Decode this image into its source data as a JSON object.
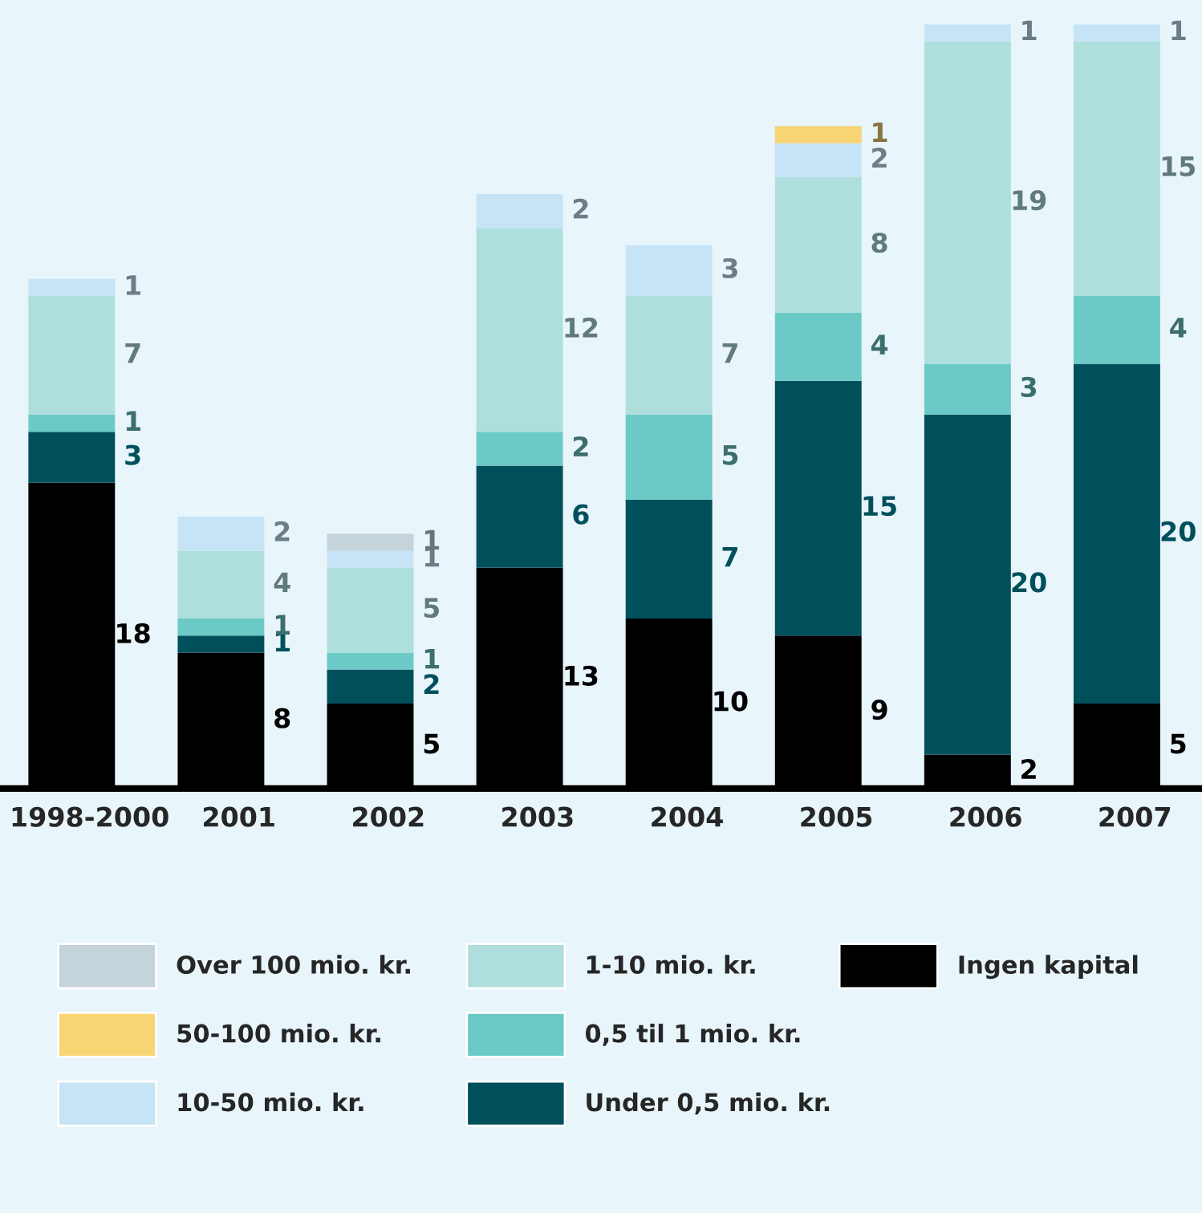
{
  "chart_data": {
    "type": "bar",
    "stacked": true,
    "legend": "bottom",
    "grid": false,
    "categories": [
      "1998-2000",
      "2001",
      "2002",
      "2003",
      "2004",
      "2005",
      "2006",
      "2007"
    ],
    "series": [
      {
        "name": "Ingen kapital",
        "color": "#000000",
        "values": [
          18,
          8,
          5,
          13,
          10,
          9,
          2,
          5
        ],
        "value_labels": [
          "18",
          "8",
          "5",
          "13",
          "10",
          "9",
          "2",
          "5"
        ]
      },
      {
        "name": "Under 0,5 mio. kr.",
        "color": "#00505c",
        "values": [
          3,
          1,
          2,
          6,
          7,
          15,
          20,
          20
        ],
        "value_labels": [
          "3",
          "1",
          "2",
          "6",
          "7",
          "15",
          "20",
          "20"
        ]
      },
      {
        "name": "0,5 til 1 mio. kr.",
        "color": "#6ccac6",
        "values": [
          1,
          1,
          1,
          2,
          5,
          4,
          3,
          4
        ],
        "value_labels": [
          "1",
          "1",
          "1",
          "2",
          "5",
          "4",
          "3",
          "4"
        ]
      },
      {
        "name": "1-10 mio. kr.",
        "color": "#aedfdc",
        "values": [
          7,
          4,
          5,
          12,
          7,
          8,
          19,
          15
        ],
        "value_labels": [
          "7",
          "4",
          "5",
          "12",
          "7",
          "8",
          "19",
          "15"
        ]
      },
      {
        "name": "10-50 mio. kr.",
        "color": "#c6e4f5",
        "values": [
          1,
          2,
          1,
          2,
          3,
          2,
          1,
          1
        ],
        "value_labels": [
          "1",
          "2",
          "1",
          "2",
          "3",
          "2",
          "1",
          "1"
        ]
      },
      {
        "name": "50-100 mio. kr.",
        "color": "#f7d575",
        "values": [
          0,
          0,
          0,
          0,
          0,
          1,
          0,
          0
        ],
        "value_labels": [
          null,
          null,
          null,
          null,
          null,
          "1",
          null,
          null
        ]
      },
      {
        "name": "Over 100 mio. kr.",
        "color": "#c5d3da",
        "values": [
          0,
          0,
          1,
          0,
          0,
          0,
          0,
          0
        ],
        "value_labels": [
          null,
          null,
          "1",
          null,
          null,
          null,
          null,
          null
        ]
      }
    ]
  }
}
